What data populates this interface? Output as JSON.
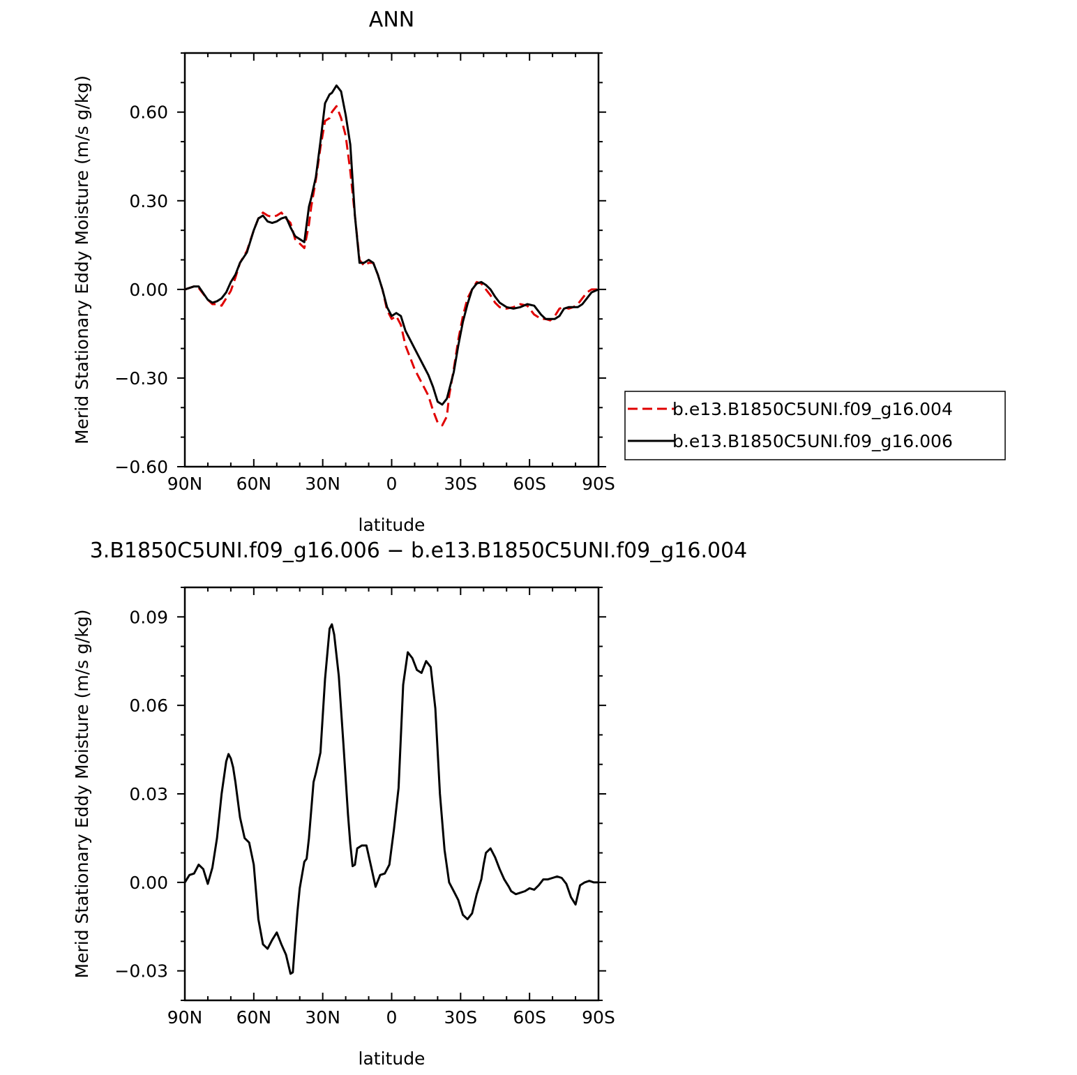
{
  "chart_data": [
    {
      "type": "line",
      "title": "ANN",
      "xlabel": "latitude",
      "ylabel": "Merid Stationary Eddy Moisture (m/s g/kg)",
      "xlim": [
        90,
        -90
      ],
      "ylim": [
        -0.6,
        0.8
      ],
      "xticks": [
        90,
        60,
        30,
        0,
        -30,
        -60,
        -90
      ],
      "xtick_labels": [
        "90N",
        "60N",
        "30N",
        "0",
        "30S",
        "60S",
        "90S"
      ],
      "yticks": [
        -0.6,
        -0.3,
        0.0,
        0.3,
        0.6
      ],
      "ytick_labels": [
        "−0.60",
        "−0.30",
        "0.00",
        "0.30",
        "0.60"
      ],
      "grid": false,
      "legend": "right",
      "series": [
        {
          "name": "b.e13.B1850C5UNI.f09_g16.004",
          "color": "#e00000",
          "dash": "dashed",
          "x": [
            90,
            86,
            84,
            80,
            78,
            76,
            74,
            72,
            70,
            68,
            66,
            63,
            60,
            58,
            56,
            54,
            52,
            50,
            48,
            46,
            44,
            42,
            40,
            38,
            36,
            35,
            33,
            31,
            29,
            27,
            26,
            24,
            22,
            20,
            18,
            16,
            14,
            12,
            10,
            8,
            6,
            4,
            2,
            0,
            -2,
            -4,
            -6,
            -8,
            -10,
            -12,
            -14,
            -16,
            -18,
            -20,
            -22,
            -24,
            -25,
            -27,
            -29,
            -31,
            -33,
            -35,
            -37,
            -39,
            -41,
            -43,
            -45,
            -47,
            -50,
            -53,
            -56,
            -59,
            -62,
            -65,
            -67,
            -69,
            -71,
            -73,
            -75,
            -77,
            -79,
            -81,
            -83,
            -85,
            -87,
            -90
          ],
          "values": [
            0.0,
            0.01,
            0.005,
            -0.035,
            -0.05,
            -0.05,
            -0.055,
            -0.03,
            -0.005,
            0.04,
            0.09,
            0.13,
            0.2,
            0.24,
            0.26,
            0.25,
            0.245,
            0.25,
            0.26,
            0.24,
            0.225,
            0.17,
            0.155,
            0.14,
            0.22,
            0.28,
            0.37,
            0.48,
            0.57,
            0.58,
            0.6,
            0.62,
            0.58,
            0.52,
            0.4,
            0.25,
            0.1,
            0.08,
            0.09,
            0.09,
            0.05,
            0.0,
            -0.07,
            -0.1,
            -0.09,
            -0.12,
            -0.19,
            -0.23,
            -0.27,
            -0.3,
            -0.33,
            -0.36,
            -0.41,
            -0.45,
            -0.46,
            -0.43,
            -0.36,
            -0.27,
            -0.17,
            -0.09,
            -0.03,
            0.0,
            0.025,
            0.02,
            0.0,
            -0.02,
            -0.045,
            -0.06,
            -0.065,
            -0.06,
            -0.05,
            -0.055,
            -0.085,
            -0.1,
            -0.1,
            -0.105,
            -0.09,
            -0.065,
            -0.06,
            -0.065,
            -0.06,
            -0.05,
            -0.03,
            -0.01,
            0.0,
            0.0
          ]
        },
        {
          "name": "b.e13.B1850C5UNI.f09_g16.006",
          "color": "#000000",
          "dash": "solid",
          "x": [
            90,
            86,
            84,
            80,
            78,
            76,
            74,
            72,
            70,
            68,
            66,
            63,
            60,
            58,
            56,
            54,
            52,
            50,
            48,
            46,
            44,
            42,
            40,
            38,
            36,
            35,
            33,
            31,
            29,
            27,
            26,
            24,
            22,
            20,
            18,
            16,
            14,
            12,
            10,
            8,
            6,
            4,
            2,
            0,
            -2,
            -4,
            -6,
            -8,
            -10,
            -12,
            -14,
            -16,
            -18,
            -20,
            -22,
            -24,
            -25,
            -27,
            -29,
            -31,
            -33,
            -35,
            -37,
            -39,
            -41,
            -43,
            -45,
            -47,
            -50,
            -53,
            -56,
            -59,
            -62,
            -65,
            -67,
            -69,
            -71,
            -73,
            -75,
            -77,
            -79,
            -81,
            -83,
            -85,
            -87,
            -90
          ],
          "values": [
            0.0,
            0.01,
            0.01,
            -0.035,
            -0.045,
            -0.04,
            -0.03,
            -0.01,
            0.025,
            0.05,
            0.09,
            0.125,
            0.2,
            0.24,
            0.25,
            0.23,
            0.225,
            0.23,
            0.24,
            0.245,
            0.21,
            0.18,
            0.17,
            0.16,
            0.28,
            0.31,
            0.38,
            0.5,
            0.63,
            0.66,
            0.665,
            0.69,
            0.67,
            0.59,
            0.49,
            0.25,
            0.09,
            0.09,
            0.1,
            0.09,
            0.05,
            0.0,
            -0.06,
            -0.09,
            -0.08,
            -0.09,
            -0.14,
            -0.17,
            -0.2,
            -0.23,
            -0.26,
            -0.29,
            -0.33,
            -0.38,
            -0.39,
            -0.37,
            -0.34,
            -0.28,
            -0.19,
            -0.11,
            -0.05,
            0.0,
            0.02,
            0.025,
            0.015,
            0.0,
            -0.025,
            -0.045,
            -0.06,
            -0.065,
            -0.06,
            -0.05,
            -0.055,
            -0.085,
            -0.1,
            -0.1,
            -0.1,
            -0.09,
            -0.065,
            -0.06,
            -0.06,
            -0.06,
            -0.05,
            -0.03,
            -0.01,
            0.0
          ]
        }
      ]
    },
    {
      "type": "line",
      "title": "3.B1850C5UNI.f09_g16.006 − b.e13.B1850C5UNI.f09_g16.004",
      "xlabel": "latitude",
      "ylabel": "Merid Stationary Eddy Moisture (m/s g/kg)",
      "xlim": [
        90,
        -90
      ],
      "ylim": [
        -0.04,
        0.1
      ],
      "xticks": [
        90,
        60,
        30,
        0,
        -30,
        -60,
        -90
      ],
      "xtick_labels": [
        "90N",
        "60N",
        "30N",
        "0",
        "30S",
        "60S",
        "90S"
      ],
      "yticks": [
        -0.03,
        0.0,
        0.03,
        0.06,
        0.09
      ],
      "ytick_labels": [
        "−0.03",
        "0.00",
        "0.03",
        "0.06",
        "0.09"
      ],
      "grid": false,
      "series": [
        {
          "color": "#000000",
          "dash": "solid",
          "x": [
            90,
            88,
            86,
            84,
            82,
            80,
            78,
            76,
            74,
            72,
            71,
            70,
            69,
            68,
            66,
            64,
            62,
            60,
            58,
            56,
            54,
            52,
            50,
            48,
            46,
            44,
            43,
            42,
            41,
            40,
            38,
            37,
            36,
            34,
            33,
            31,
            29,
            27,
            26,
            25,
            23,
            21,
            19,
            18,
            17,
            16,
            15,
            13,
            11,
            9,
            7,
            5,
            3,
            1,
            -1,
            -3,
            -5,
            -7,
            -9,
            -11,
            -13,
            -15,
            -17,
            -19,
            -21,
            -23,
            -25,
            -27,
            -29,
            -31,
            -33,
            -35,
            -37,
            -39,
            -40,
            -41,
            -43,
            -45,
            -47,
            -49,
            -51,
            -52,
            -54,
            -56,
            -58,
            -60,
            -62,
            -64,
            -66,
            -68,
            -70,
            -72,
            -74,
            -76,
            -78,
            -80,
            -82,
            -84,
            -86,
            -88,
            -90
          ],
          "values": [
            0.0,
            0.0025,
            0.003,
            0.006,
            0.0045,
            -0.0005,
            0.005,
            0.015,
            0.03,
            0.041,
            0.0435,
            0.042,
            0.039,
            0.034,
            0.022,
            0.015,
            0.0135,
            0.006,
            -0.0125,
            -0.021,
            -0.0225,
            -0.0195,
            -0.017,
            -0.021,
            -0.0245,
            -0.031,
            -0.0305,
            -0.02,
            -0.01,
            -0.002,
            0.007,
            0.008,
            0.015,
            0.034,
            0.037,
            0.044,
            0.069,
            0.086,
            0.0875,
            0.084,
            0.07,
            0.047,
            0.023,
            0.013,
            0.0055,
            0.006,
            0.0115,
            0.0125,
            0.0125,
            0.0055,
            -0.0015,
            0.0025,
            0.003,
            0.006,
            0.018,
            0.032,
            0.067,
            0.078,
            0.076,
            0.072,
            0.071,
            0.075,
            0.073,
            0.059,
            0.03,
            0.011,
            0.0,
            -0.003,
            -0.006,
            -0.011,
            -0.0125,
            -0.0105,
            -0.004,
            0.001,
            0.006,
            0.01,
            0.0115,
            0.0085,
            0.0045,
            0.001,
            -0.0015,
            -0.003,
            -0.004,
            -0.0035,
            -0.003,
            -0.002,
            -0.0025,
            -0.001,
            0.001,
            0.001,
            0.0015,
            0.002,
            0.0015,
            -0.0005,
            -0.005,
            -0.0075,
            -0.001,
            0.0,
            0.0005,
            0.0,
            0.0
          ]
        }
      ]
    }
  ]
}
